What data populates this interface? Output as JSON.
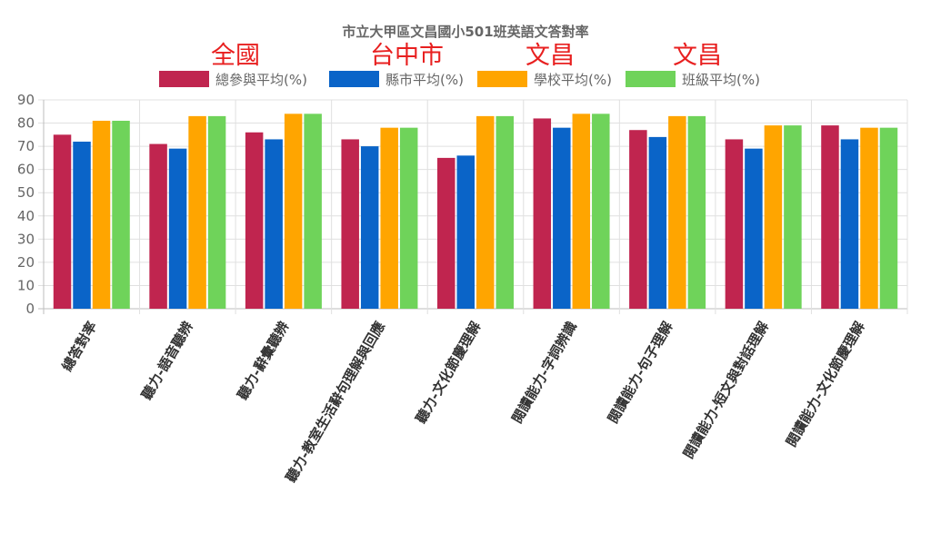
{
  "chart_data": {
    "type": "bar",
    "title": "市立大甲區文昌國小501班英語文答對率",
    "categories": [
      "總答對率",
      "聽力-語音聽辨",
      "聽力-辭彙聽辨",
      "聽力-教室生活辭句理解與回應",
      "聽力-文化節慶理解",
      "閱讀能力-字詞辨識",
      "閱讀能力-句子理解",
      "閱讀能力-短文與對話理解",
      "閱讀能力-文化節慶理解"
    ],
    "series": [
      {
        "name": "總參與平均(%)",
        "color": "#c0254f",
        "values": [
          75,
          71,
          76,
          73,
          65,
          82,
          77,
          73,
          79
        ]
      },
      {
        "name": "縣市平均(%)",
        "color": "#0a64c8",
        "values": [
          72,
          69,
          73,
          70,
          66,
          78,
          74,
          69,
          73
        ]
      },
      {
        "name": "學校平均(%)",
        "color": "#ffa500",
        "values": [
          81,
          83,
          84,
          78,
          83,
          84,
          83,
          79,
          78
        ]
      },
      {
        "name": "班級平均(%)",
        "color": "#6fd35a",
        "values": [
          81,
          83,
          84,
          78,
          83,
          84,
          83,
          79,
          78
        ]
      }
    ],
    "ylim": [
      0,
      90
    ],
    "yticks": [
      0,
      10,
      20,
      30,
      40,
      50,
      60,
      70,
      80,
      90
    ],
    "legend_position": "top",
    "grid": true
  },
  "annotations": [
    "全國",
    "台中市",
    "文昌",
    "文昌"
  ]
}
